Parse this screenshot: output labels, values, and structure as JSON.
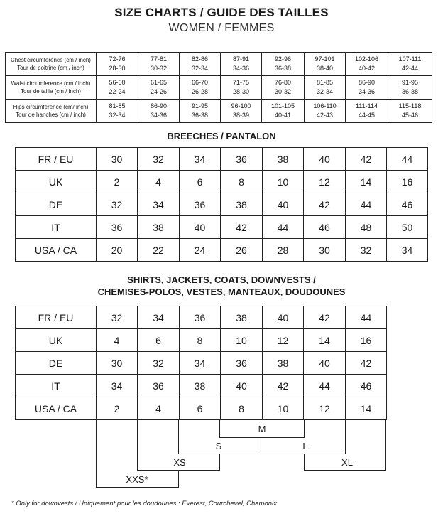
{
  "header": {
    "title": "SIZE CHARTS / GUIDE DES TAILLES",
    "subtitle": "WOMEN / FEMMES"
  },
  "measurements": {
    "rows": [
      {
        "label_en": "Chest circumference (cm / inch)",
        "label_fr": "Tour de poitrine (cm / inch)",
        "cells": [
          [
            "72-76",
            "28-30"
          ],
          [
            "77-81",
            "30-32"
          ],
          [
            "82-86",
            "32-34"
          ],
          [
            "87-91",
            "34-36"
          ],
          [
            "92-96",
            "36-38"
          ],
          [
            "97-101",
            "38-40"
          ],
          [
            "102-106",
            "40-42"
          ],
          [
            "107-111",
            "42-44"
          ]
        ]
      },
      {
        "label_en": "Waist circumference (cm / inch)",
        "label_fr": "Tour de taille (cm / inch)",
        "cells": [
          [
            "56-60",
            "22-24"
          ],
          [
            "61-65",
            "24-26"
          ],
          [
            "66-70",
            "26-28"
          ],
          [
            "71-75",
            "28-30"
          ],
          [
            "76-80",
            "30-32"
          ],
          [
            "81-85",
            "32-34"
          ],
          [
            "86-90",
            "34-36"
          ],
          [
            "91-95",
            "36-38"
          ]
        ]
      },
      {
        "label_en": "Hips circumference (cm/ inch)",
        "label_fr": "Tour de hanches (cm / inch)",
        "cells": [
          [
            "81-85",
            "32-34"
          ],
          [
            "86-90",
            "34-36"
          ],
          [
            "91-95",
            "36-38"
          ],
          [
            "96-100",
            "38-39"
          ],
          [
            "101-105",
            "40-41"
          ],
          [
            "106-110",
            "42-43"
          ],
          [
            "111-114",
            "44-45"
          ],
          [
            "115-118",
            "45-46"
          ]
        ]
      }
    ]
  },
  "breeches": {
    "title": "BREECHES / PANTALON",
    "rows": [
      {
        "label": "FR / EU",
        "values": [
          "30",
          "32",
          "34",
          "36",
          "38",
          "40",
          "42",
          "44"
        ]
      },
      {
        "label": "UK",
        "values": [
          "2",
          "4",
          "6",
          "8",
          "10",
          "12",
          "14",
          "16"
        ]
      },
      {
        "label": "DE",
        "values": [
          "32",
          "34",
          "36",
          "38",
          "40",
          "42",
          "44",
          "46"
        ]
      },
      {
        "label": "IT",
        "values": [
          "36",
          "38",
          "40",
          "42",
          "44",
          "46",
          "48",
          "50"
        ]
      },
      {
        "label": "USA / CA",
        "values": [
          "20",
          "22",
          "24",
          "26",
          "28",
          "30",
          "32",
          "34"
        ]
      }
    ]
  },
  "shirts": {
    "title_line1": "SHIRTS, JACKETS, COATS, DOWNVESTS /",
    "title_line2": "CHEMISES-POLOS, VESTES, MANTEAUX, DOUDOUNES",
    "rows": [
      {
        "label": "FR / EU",
        "values": [
          "32",
          "34",
          "36",
          "38",
          "40",
          "42",
          "44"
        ]
      },
      {
        "label": "UK",
        "values": [
          "4",
          "6",
          "8",
          "10",
          "12",
          "14",
          "16"
        ]
      },
      {
        "label": "DE",
        "values": [
          "30",
          "32",
          "34",
          "36",
          "38",
          "40",
          "42"
        ]
      },
      {
        "label": "IT",
        "values": [
          "34",
          "36",
          "38",
          "40",
          "42",
          "44",
          "46"
        ]
      },
      {
        "label": "USA / CA",
        "values": [
          "2",
          "4",
          "6",
          "8",
          "10",
          "12",
          "14"
        ]
      }
    ],
    "letter_sizes": {
      "m": "M",
      "s": "S",
      "l": "L",
      "xs": "XS",
      "xl": "XL",
      "xxs": "XXS*"
    }
  },
  "footnote": "* Only for downvests / Uniquement pour les doudounes : Everest, Courchevel, Chamonix"
}
